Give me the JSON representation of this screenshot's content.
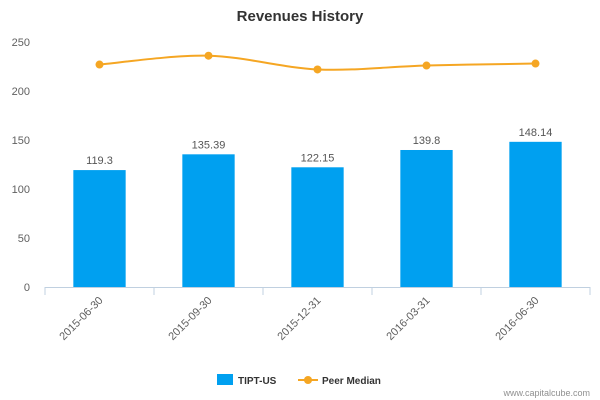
{
  "chart_data": {
    "type": "bar",
    "title": "Revenues History",
    "xlabel": "",
    "ylabel": "",
    "categories": [
      "2015-06-30",
      "2015-09-30",
      "2015-12-31",
      "2016-03-31",
      "2016-06-30"
    ],
    "series": [
      {
        "name": "TIPT-US",
        "type": "bar",
        "values": [
          119.3,
          135.39,
          122.15,
          139.8,
          148.14
        ],
        "value_labels": [
          "119.3",
          "135.39",
          "122.15",
          "139.8",
          "148.14"
        ],
        "color": "#00a0f0"
      },
      {
        "name": "Peer Median",
        "type": "line",
        "values": [
          227,
          236,
          222,
          226,
          228
        ],
        "color": "#f5a623"
      }
    ],
    "y_ticks": [
      "0",
      "50",
      "100",
      "150",
      "200",
      "250"
    ],
    "ylim": [
      0,
      250
    ],
    "grid": false,
    "legend": "bottom"
  },
  "credit": "www.capitalcube.com"
}
